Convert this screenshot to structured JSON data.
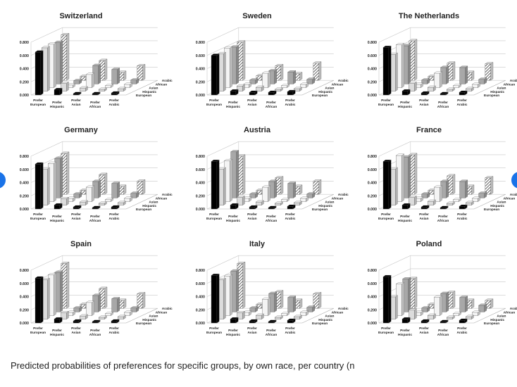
{
  "caption": "Predicted probabilities of preferences for specific groups, by own race, per country (n",
  "chart_data": {
    "type": "bar3d",
    "y_ticks": [
      "0.000",
      "0.200",
      "0.400",
      "0.600",
      "0.800"
    ],
    "ylim": [
      0,
      0.8
    ],
    "x_categories": [
      "Prefer European",
      "Prefer Hispanic",
      "Prefer Asian",
      "Prefer African",
      "Prefer Arabic"
    ],
    "depth_series": [
      "European",
      "Hispanic",
      "Asian",
      "African",
      "Arabic"
    ],
    "colors": {
      "European": "#000000",
      "Hispanic": "#dcdcdc",
      "Asian": "#f4f4f4",
      "African": "#a8a8a8",
      "Arabic": "#9a9a9a"
    },
    "panels": [
      {
        "title": "Switzerland",
        "values": [
          [
            0.65,
            0.08,
            0.02,
            0.02,
            0.03
          ],
          [
            0.66,
            0.12,
            0.05,
            0.03,
            0.04
          ],
          [
            0.66,
            0.04,
            0.2,
            0.03,
            0.05
          ],
          [
            0.63,
            0.05,
            0.28,
            0.22,
            0.06
          ],
          [
            0.69,
            0.06,
            0.3,
            0.12,
            0.22
          ]
        ]
      },
      {
        "title": "Sweden",
        "values": [
          [
            0.6,
            0.06,
            0.04,
            0.04,
            0.05
          ],
          [
            0.57,
            0.08,
            0.06,
            0.03,
            0.04
          ],
          [
            0.6,
            0.05,
            0.22,
            0.03,
            0.05
          ],
          [
            0.56,
            0.06,
            0.2,
            0.18,
            0.07
          ],
          [
            0.58,
            0.07,
            0.22,
            0.1,
            0.26
          ]
        ]
      },
      {
        "title": "The Netherlands",
        "values": [
          [
            0.72,
            0.06,
            0.03,
            0.02,
            0.04
          ],
          [
            0.56,
            0.12,
            0.06,
            0.03,
            0.04
          ],
          [
            0.65,
            0.05,
            0.22,
            0.03,
            0.05
          ],
          [
            0.58,
            0.06,
            0.25,
            0.25,
            0.07
          ],
          [
            0.6,
            0.06,
            0.26,
            0.12,
            0.25
          ]
        ]
      },
      {
        "title": "Germany",
        "values": [
          [
            0.68,
            0.06,
            0.03,
            0.02,
            0.03
          ],
          [
            0.55,
            0.1,
            0.05,
            0.03,
            0.04
          ],
          [
            0.58,
            0.05,
            0.22,
            0.03,
            0.05
          ],
          [
            0.6,
            0.06,
            0.25,
            0.22,
            0.07
          ],
          [
            0.62,
            0.06,
            0.3,
            0.12,
            0.2
          ]
        ]
      },
      {
        "title": "Austria",
        "values": [
          [
            0.72,
            0.06,
            0.03,
            0.02,
            0.04
          ],
          [
            0.55,
            0.12,
            0.05,
            0.03,
            0.04
          ],
          [
            0.62,
            0.05,
            0.22,
            0.03,
            0.05
          ],
          [
            0.7,
            0.06,
            0.25,
            0.22,
            0.06
          ],
          [
            0.58,
            0.06,
            0.25,
            0.12,
            0.2
          ]
        ]
      },
      {
        "title": "France",
        "values": [
          [
            0.72,
            0.06,
            0.03,
            0.02,
            0.04
          ],
          [
            0.55,
            0.12,
            0.06,
            0.03,
            0.04
          ],
          [
            0.7,
            0.05,
            0.22,
            0.03,
            0.05
          ],
          [
            0.62,
            0.06,
            0.25,
            0.25,
            0.07
          ],
          [
            0.6,
            0.06,
            0.28,
            0.12,
            0.25
          ]
        ]
      },
      {
        "title": "Spain",
        "values": [
          [
            0.68,
            0.06,
            0.03,
            0.02,
            0.03
          ],
          [
            0.6,
            0.1,
            0.05,
            0.03,
            0.04
          ],
          [
            0.62,
            0.05,
            0.2,
            0.03,
            0.05
          ],
          [
            0.6,
            0.06,
            0.25,
            0.2,
            0.06
          ],
          [
            0.68,
            0.06,
            0.3,
            0.12,
            0.22
          ]
        ]
      },
      {
        "title": "Italy",
        "values": [
          [
            0.72,
            0.06,
            0.03,
            0.02,
            0.04
          ],
          [
            0.6,
            0.1,
            0.06,
            0.03,
            0.04
          ],
          [
            0.6,
            0.05,
            0.25,
            0.03,
            0.05
          ],
          [
            0.62,
            0.06,
            0.28,
            0.22,
            0.07
          ],
          [
            0.68,
            0.06,
            0.25,
            0.12,
            0.22
          ]
        ]
      },
      {
        "title": "Poland",
        "values": [
          [
            0.7,
            0.06,
            0.03,
            0.02,
            0.04
          ],
          [
            0.34,
            0.14,
            0.06,
            0.03,
            0.04
          ],
          [
            0.48,
            0.05,
            0.28,
            0.03,
            0.05
          ],
          [
            0.5,
            0.06,
            0.28,
            0.22,
            0.1
          ],
          [
            0.45,
            0.06,
            0.24,
            0.12,
            0.12
          ]
        ]
      }
    ]
  }
}
